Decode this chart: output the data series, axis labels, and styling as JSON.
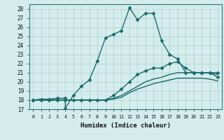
{
  "xlabel": "Humidex (Indice chaleur)",
  "bg_color": "#d4ecec",
  "line_color": "#1a6b6b",
  "grid_color": "#b0d0d0",
  "xlim": [
    -0.5,
    23.5
  ],
  "ylim": [
    17,
    28.5
  ],
  "xticks": [
    0,
    1,
    2,
    3,
    4,
    5,
    6,
    7,
    8,
    9,
    10,
    11,
    12,
    13,
    14,
    15,
    16,
    17,
    18,
    19,
    20,
    21,
    22,
    23
  ],
  "yticks": [
    17,
    18,
    19,
    20,
    21,
    22,
    23,
    24,
    25,
    26,
    27,
    28
  ],
  "line1_x": [
    0,
    1,
    2,
    3,
    4,
    4,
    5,
    6,
    7,
    8,
    9,
    10,
    11,
    12,
    13,
    14,
    15,
    16,
    17,
    18,
    19,
    20,
    21,
    22,
    23
  ],
  "line1_y": [
    18,
    18.1,
    18.1,
    18.2,
    18.2,
    17.1,
    18.5,
    19.5,
    20.2,
    22.3,
    24.8,
    25.2,
    25.6,
    28.1,
    26.8,
    27.5,
    27.5,
    24.5,
    23.0,
    22.5,
    21.0,
    21.0,
    21.0,
    21.0,
    20.5
  ],
  "line2_x": [
    0,
    1,
    2,
    3,
    4,
    5,
    6,
    7,
    8,
    9,
    10,
    11,
    12,
    13,
    14,
    15,
    16,
    17,
    18,
    19,
    20,
    21,
    22,
    23
  ],
  "line2_y": [
    18,
    18,
    18,
    18,
    18,
    18,
    18,
    18,
    18,
    18,
    18.5,
    19.2,
    20.0,
    20.8,
    21.2,
    21.5,
    21.5,
    22.0,
    22.2,
    21.5,
    21.0,
    21.0,
    21.0,
    21.0
  ],
  "line3_x": [
    0,
    1,
    2,
    3,
    4,
    5,
    6,
    7,
    8,
    9,
    10,
    11,
    12,
    13,
    14,
    15,
    16,
    17,
    18,
    19,
    20,
    21,
    22,
    23
  ],
  "line3_y": [
    18,
    18,
    18,
    18,
    18,
    18,
    18,
    18,
    18,
    18,
    18.2,
    18.5,
    19.0,
    19.5,
    20.0,
    20.3,
    20.5,
    20.8,
    21.0,
    21.0,
    21.0,
    21.0,
    21.0,
    20.8
  ],
  "line4_x": [
    0,
    1,
    2,
    3,
    4,
    5,
    6,
    7,
    8,
    9,
    10,
    11,
    12,
    13,
    14,
    15,
    16,
    17,
    18,
    19,
    20,
    21,
    22,
    23
  ],
  "line4_y": [
    18,
    18,
    18,
    18,
    18,
    18,
    18,
    18,
    18,
    18,
    18.1,
    18.3,
    18.8,
    19.2,
    19.5,
    19.8,
    20.0,
    20.2,
    20.4,
    20.4,
    20.4,
    20.4,
    20.3,
    20.1
  ],
  "linewidth": 1.0,
  "marker": "D",
  "marker_size": 2.5
}
